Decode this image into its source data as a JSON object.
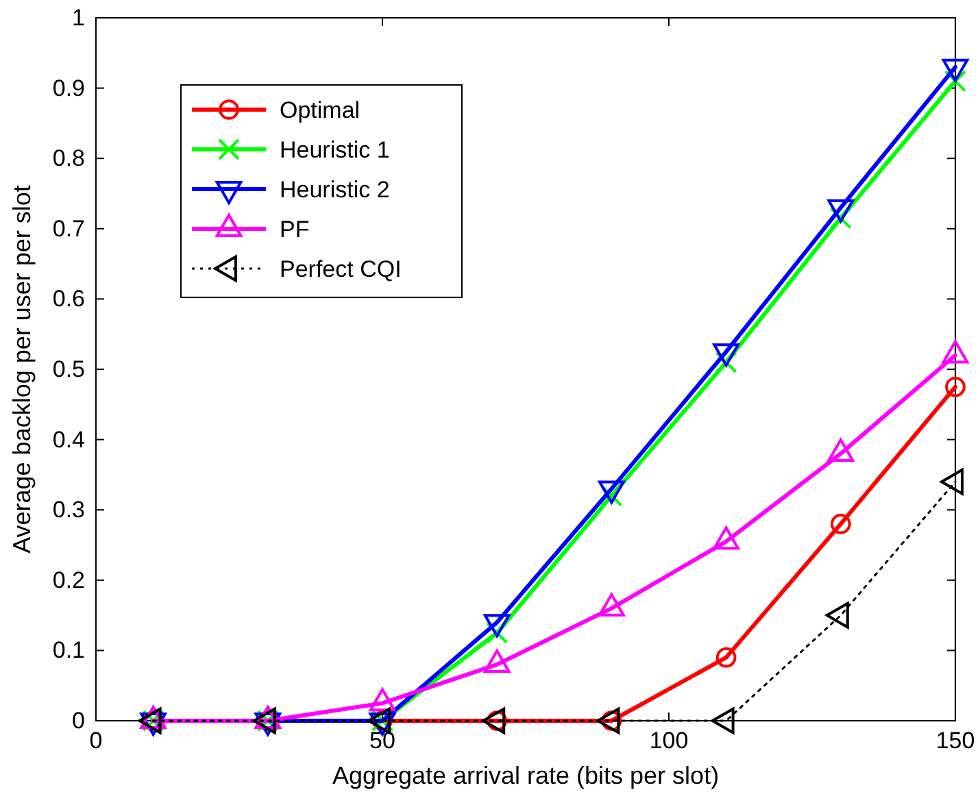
{
  "chart_data": {
    "type": "line",
    "xlabel": "Aggregate arrival rate (bits per slot)",
    "ylabel": "Average backlog per user per slot",
    "x": [
      10,
      30,
      50,
      70,
      90,
      110,
      130,
      150
    ],
    "xlim": [
      0,
      150
    ],
    "xticks": [
      0,
      50,
      100,
      150
    ],
    "ylim": [
      0,
      1
    ],
    "yticks": [
      0,
      0.1,
      0.2,
      0.3,
      0.4,
      0.5,
      0.6,
      0.7,
      0.8,
      0.9,
      1
    ],
    "grid": false,
    "legend": "top left",
    "series": [
      {
        "name": "Optimal",
        "color": "#ff0000",
        "marker": "circle",
        "line_style": "solid",
        "values": [
          0,
          0,
          0,
          0,
          0,
          0.09,
          0.28,
          0.475
        ]
      },
      {
        "name": "Heuristic 1",
        "color": "#00ff00",
        "marker": "cross",
        "line_style": "solid",
        "values": [
          0,
          0,
          0,
          0.125,
          0.32,
          0.51,
          0.715,
          0.91
        ]
      },
      {
        "name": "Heuristic 2",
        "color": "#0000ff",
        "marker": "triangle-down",
        "line_style": "solid",
        "values": [
          0,
          0,
          0,
          0.14,
          0.33,
          0.525,
          0.73,
          0.93
        ]
      },
      {
        "name": "PF",
        "color": "#ff00ff",
        "marker": "triangle",
        "line_style": "solid",
        "values": [
          0,
          0,
          0.025,
          0.08,
          0.16,
          0.255,
          0.38,
          0.52
        ]
      },
      {
        "name": "Perfect CQI",
        "color": "#000000",
        "marker": "triangle-left",
        "line_style": "dotted",
        "values": [
          0,
          0,
          0,
          0,
          0,
          0,
          0.15,
          0.34
        ]
      }
    ]
  }
}
